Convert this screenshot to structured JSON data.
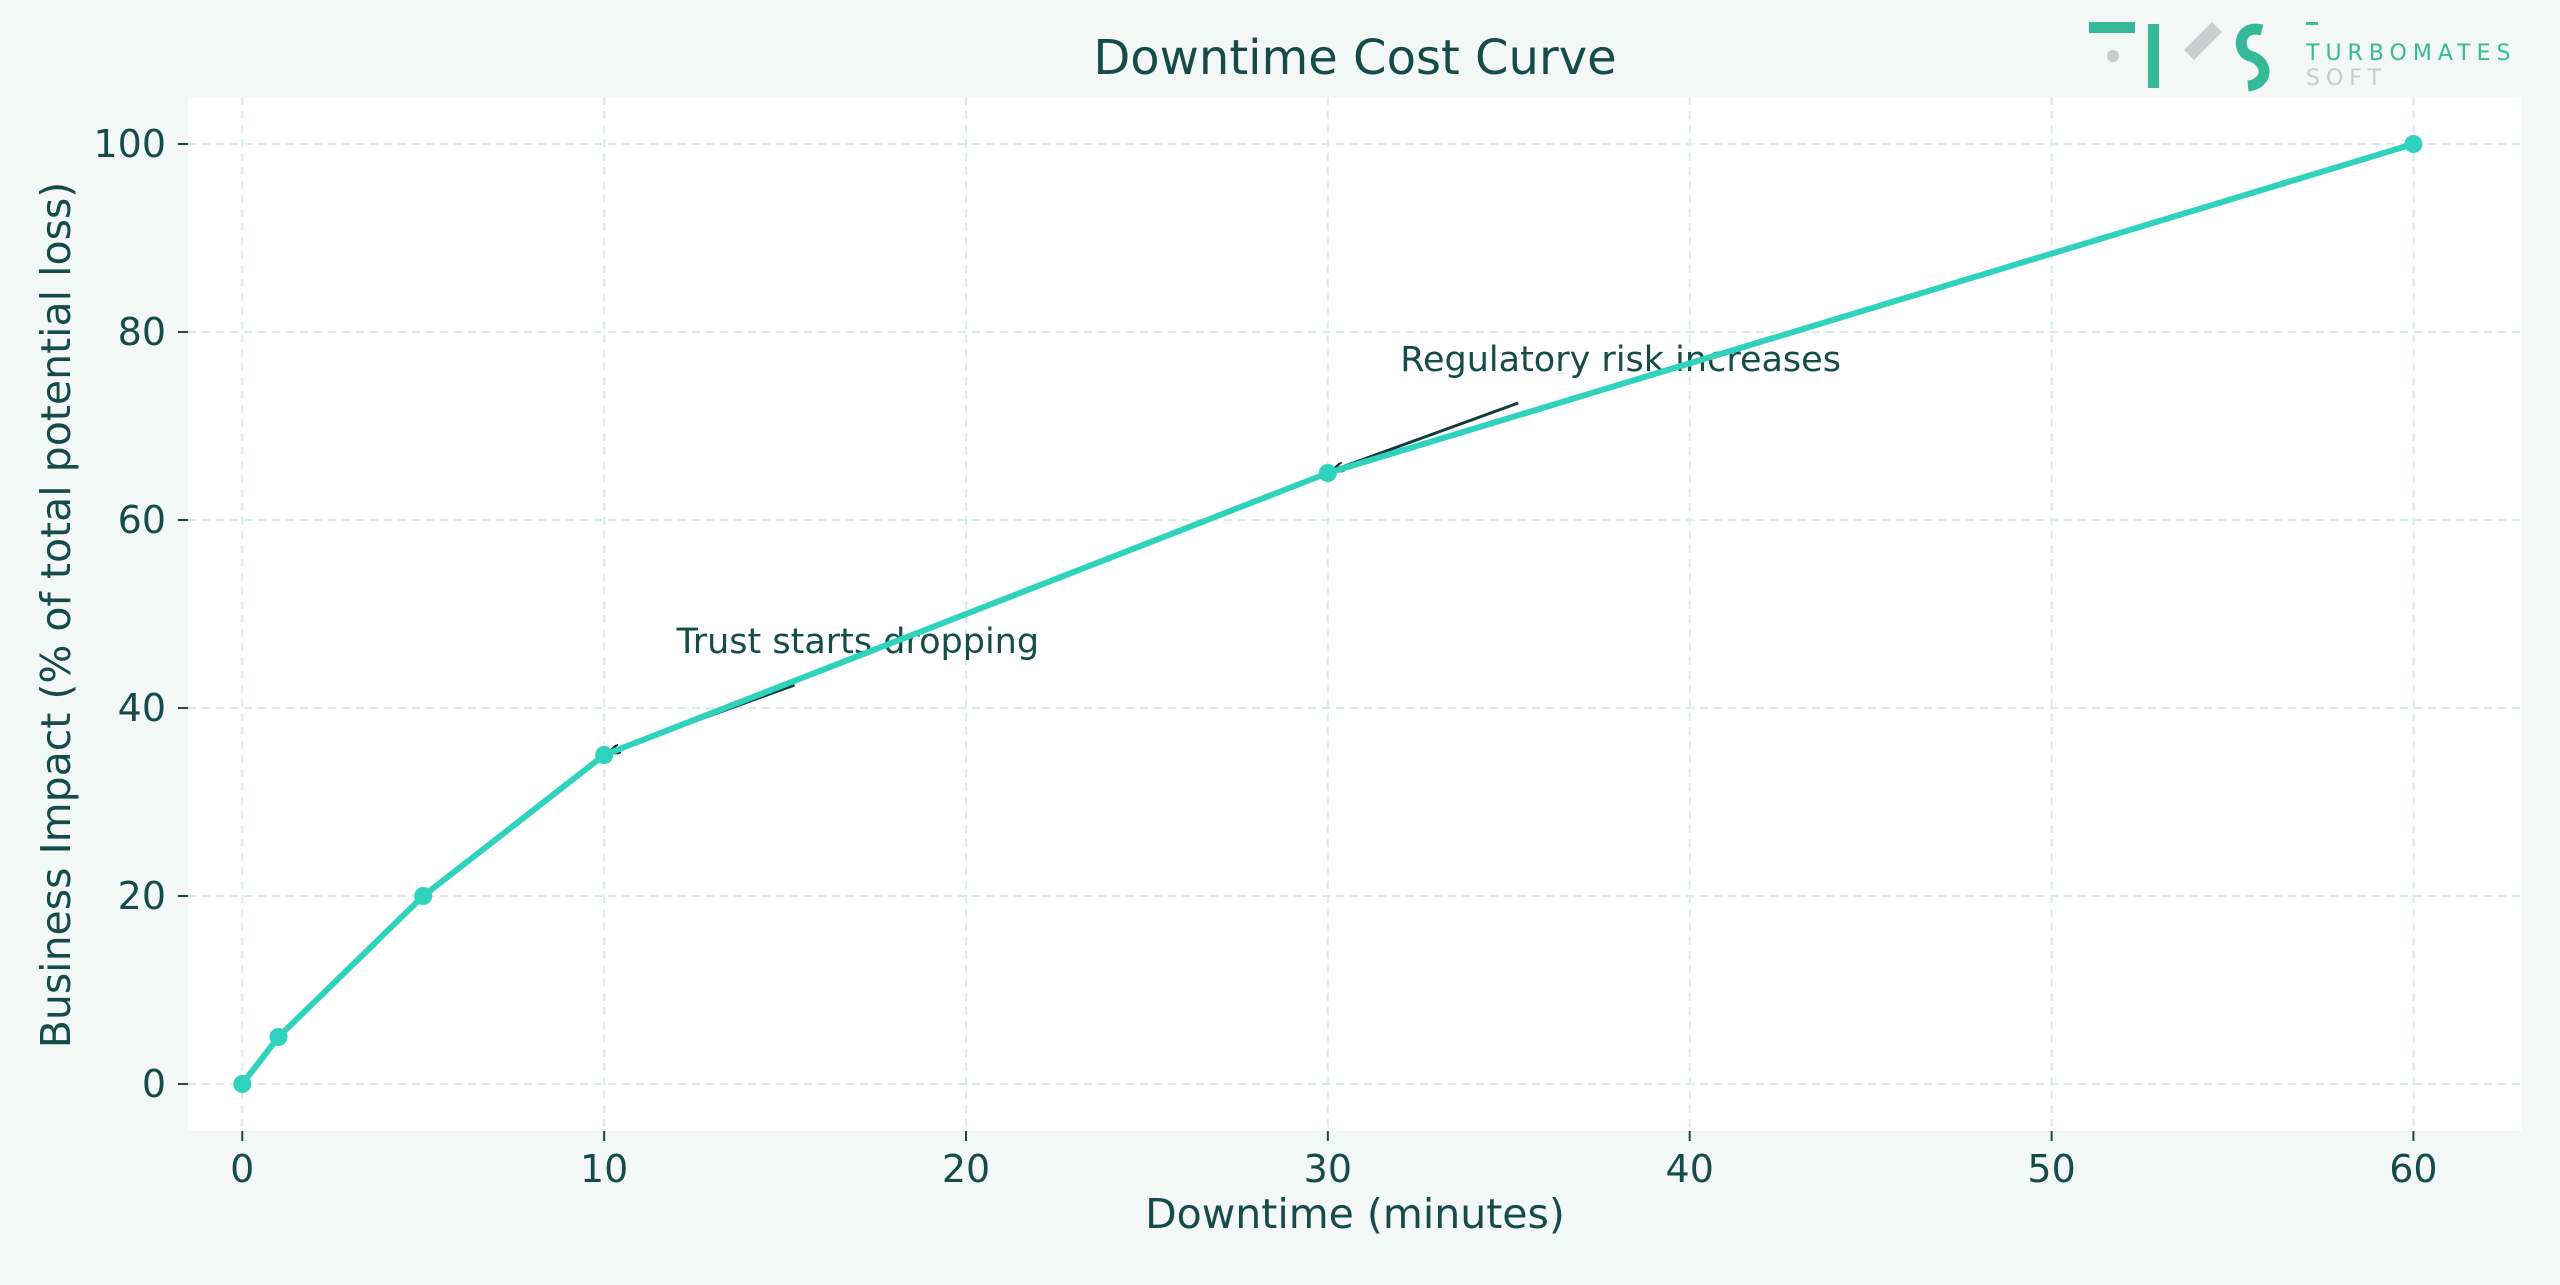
{
  "colors": {
    "page_background": "#f3f7f6",
    "plot_background": "#ffffff",
    "line": "#2fd3bd",
    "text": "#154c4a",
    "grid": "#d9ebe8",
    "arrow": "#0f3b39",
    "logo_primary": "#35b996",
    "logo_secondary": "#c8cccc"
  },
  "logo": {
    "line1": "TURBOMATES",
    "line2": "SOFT",
    "icon": "tms-logo-icon"
  },
  "chart_data": {
    "type": "line",
    "title": "Downtime Cost Curve",
    "xlabel": "Downtime (minutes)",
    "ylabel": "Business Impact (% of total potential loss)",
    "xlim": [
      -1.5,
      63
    ],
    "ylim": [
      -5,
      105
    ],
    "xticks": [
      0,
      10,
      20,
      30,
      40,
      50,
      60
    ],
    "yticks": [
      0,
      20,
      40,
      60,
      80,
      100
    ],
    "grid": true,
    "series": [
      {
        "name": "Business Impact",
        "x": [
          0,
          1,
          5,
          10,
          30,
          60
        ],
        "y": [
          0,
          5,
          20,
          35,
          65,
          100
        ],
        "markers": true
      }
    ],
    "annotations": [
      {
        "text": "Trust starts dropping",
        "x": 10,
        "y": 35,
        "text_x": 12,
        "text_y": 45
      },
      {
        "text": "Regulatory risk increases",
        "x": 30,
        "y": 65,
        "text_x": 32,
        "text_y": 75
      }
    ]
  }
}
